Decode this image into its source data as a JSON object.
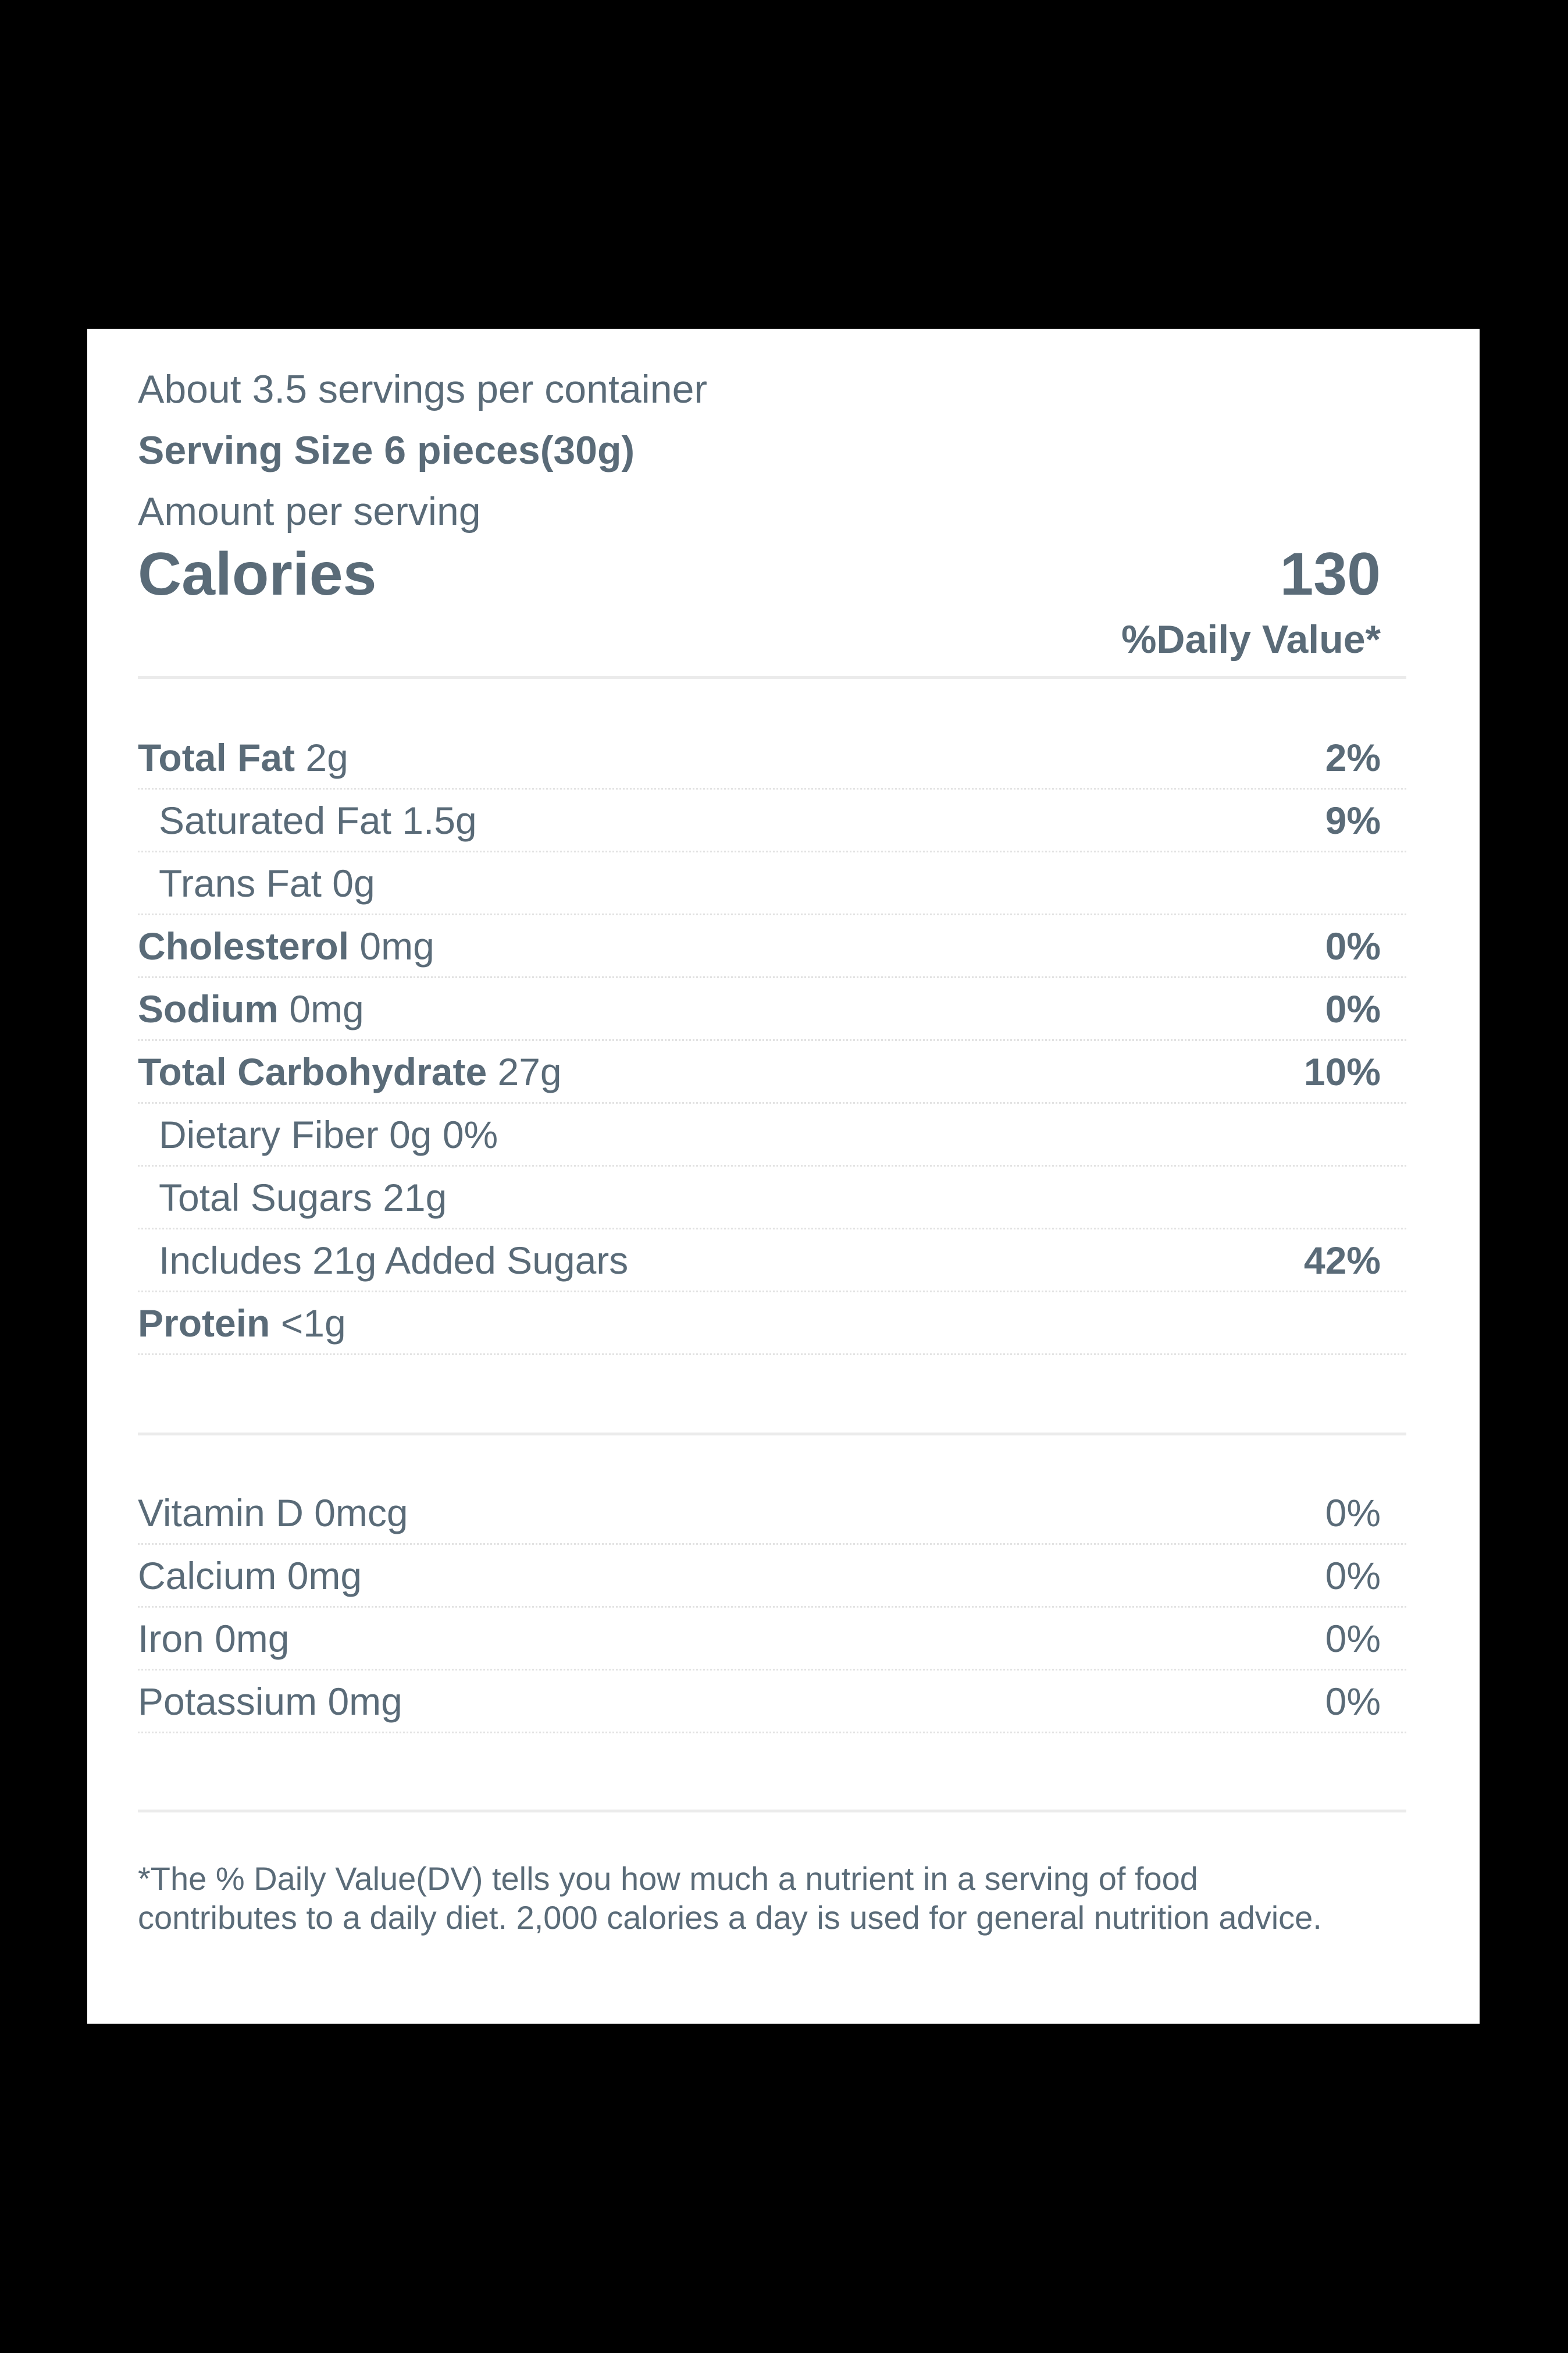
{
  "header": {
    "servings_per_container": "About 3.5 servings per container",
    "serving_size": "Serving Size 6 pieces(30g)",
    "amount_per_serving": "Amount per serving",
    "calories_label": "Calories",
    "calories_value": "130",
    "daily_value_header": "%Daily Value*"
  },
  "nutrients": [
    {
      "name": "Total Fat",
      "amount": " 2g",
      "dv": "2%"
    },
    {
      "name": "",
      "amount": "Saturated Fat 1.5g",
      "dv": "9%"
    },
    {
      "name": "",
      "amount": "Trans Fat 0g",
      "dv": ""
    },
    {
      "name": "Cholesterol",
      "amount": " 0mg",
      "dv": "0%"
    },
    {
      "name": "Sodium",
      "amount": " 0mg",
      "dv": "0%"
    },
    {
      "name": "Total Carbohydrate",
      "amount": " 27g",
      "dv": "10%"
    },
    {
      "name": "",
      "amount": "Dietary Fiber 0g 0%",
      "dv": ""
    },
    {
      "name": "",
      "amount": "Total Sugars 21g",
      "dv": ""
    },
    {
      "name": "",
      "amount": "Includes 21g Added Sugars",
      "dv": "42%"
    },
    {
      "name": "Protein",
      "amount": " <1g",
      "dv": ""
    }
  ],
  "vitamins": [
    {
      "label": "Vitamin D 0mcg",
      "dv": "0%"
    },
    {
      "label": "Calcium 0mg",
      "dv": "0%"
    },
    {
      "label": "Iron 0mg",
      "dv": "0%"
    },
    {
      "label": "Potassium 0mg",
      "dv": "0%"
    }
  ],
  "footnote": "*The % Daily Value(DV) tells you how much a nutrient in a serving of food contributes to a daily diet. 2,000 calories a day is used for general nutrition advice.",
  "colors": {
    "text": "#5a6b78",
    "background": "#000000",
    "panel": "#ffffff"
  }
}
